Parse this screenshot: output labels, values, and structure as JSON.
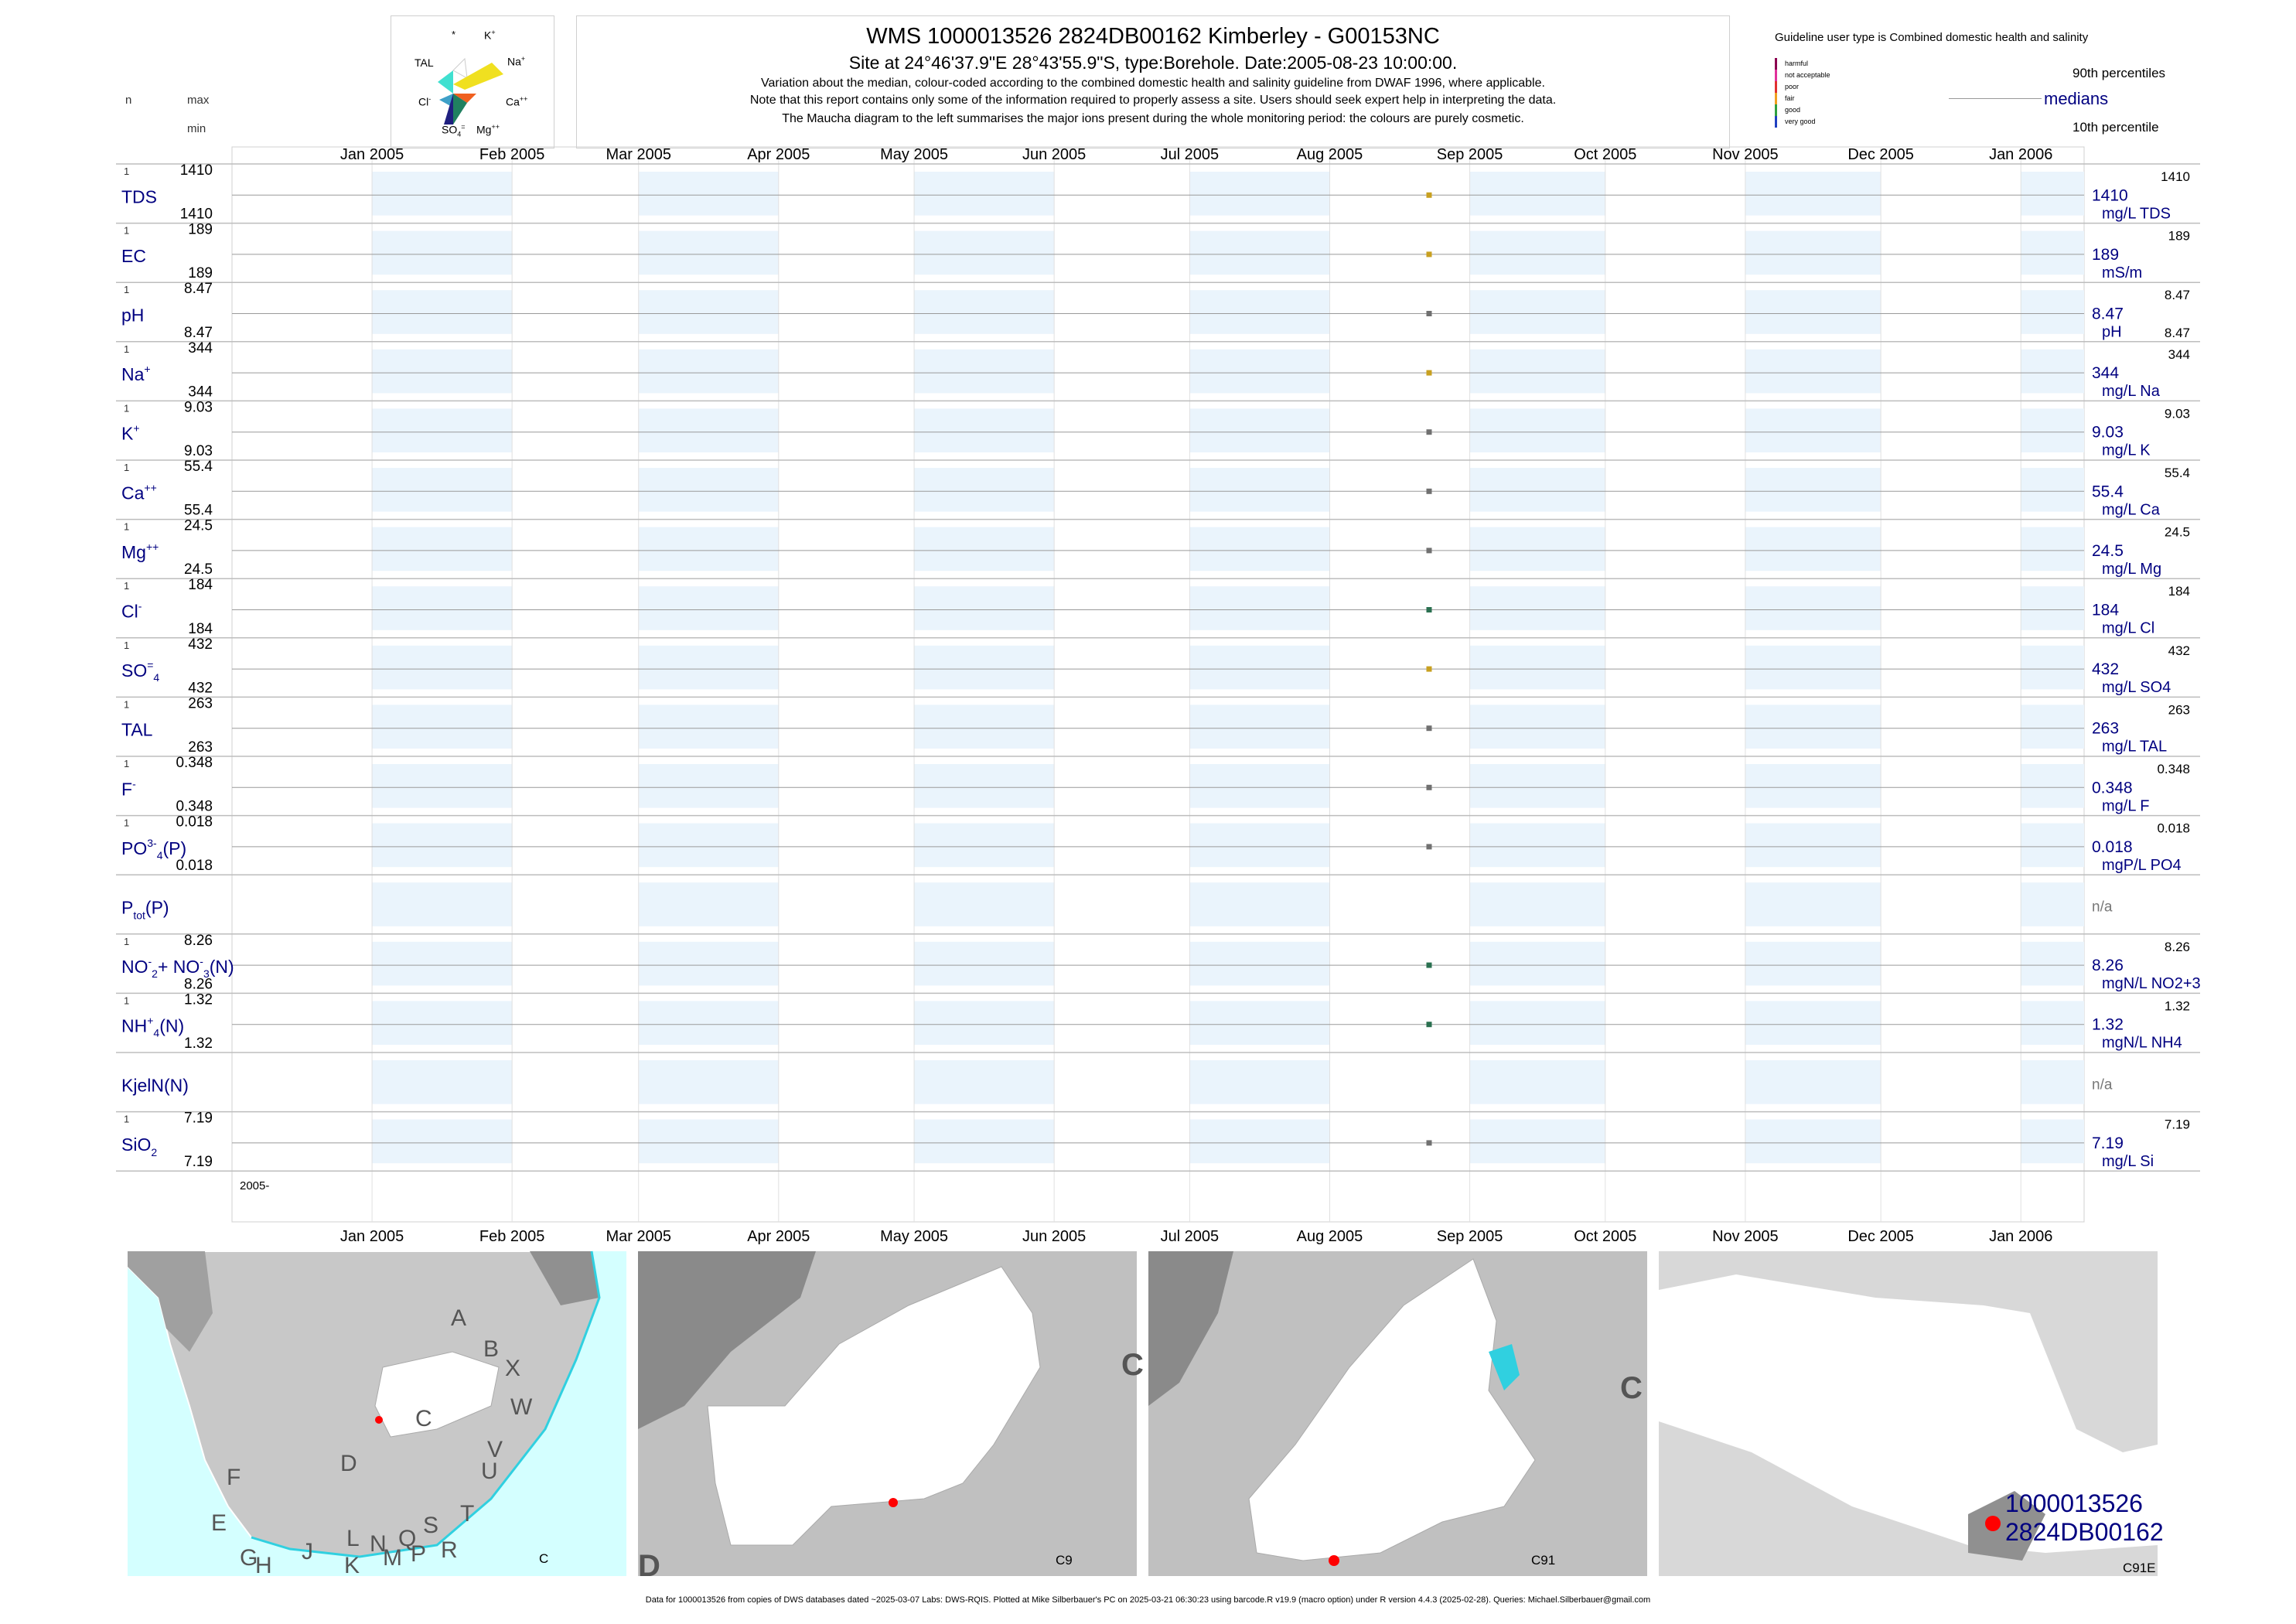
{
  "header": {
    "title": "WMS 1000013526 2824DB00162 Kimberley - G00153NC",
    "subtitle": "Site at 24°46'37.9\"E 28°43'55.9\"S, type:Borehole. Date:2005-08-23 10:00:00.",
    "note1": "Variation about the median,  colour-coded according to the combined domestic health and salinity guideline from DWAF 1996, where applicable.",
    "note2": "Note that this report contains only some of the information required to properly assess a site. Users should seek expert help in interpreting the data.",
    "note3": "The Maucha diagram to the left summarises the major ions present during the whole monitoring period: the colours are purely cosmetic."
  },
  "left_header": {
    "n": "n",
    "max": "max",
    "min": "min"
  },
  "maucha": {
    "labels": {
      "star": "*",
      "k": "K",
      "k_sup": "+",
      "tal": "TAL",
      "na": "Na",
      "na_sup": "+",
      "cl": "Cl",
      "cl_sup": "-",
      "ca": "Ca",
      "ca_sup": "++",
      "so4": "SO",
      "so4_sub": "4",
      "so4_sup": "=",
      "mg": "Mg",
      "mg_sup": "++"
    },
    "colors": {
      "na": "#f0e020",
      "k": "#ffffff",
      "tal": "#40e0d0",
      "cl": "#3ea0c8",
      "so4": "#202080",
      "mg": "#208060",
      "ca": "#f06020"
    }
  },
  "legend": {
    "title": "Guideline user type is Combined domestic health and salinity",
    "classes": [
      {
        "label": "harmful",
        "color": "#8b0050"
      },
      {
        "label": "not acceptable",
        "color": "#e0309a"
      },
      {
        "label": "poor",
        "color": "#e03030"
      },
      {
        "label": "fair",
        "color": "#f0a020"
      },
      {
        "label": "good",
        "color": "#30a040"
      },
      {
        "label": "very good",
        "color": "#2040c0"
      }
    ],
    "p90": "90th percentiles",
    "medians": "medians",
    "p10": "10th percentile"
  },
  "chart_data": {
    "type": "scatter",
    "x_range": [
      "2004-12-01",
      "2006-01-15"
    ],
    "months": [
      "Jan 2005",
      "Feb 2005",
      "Mar 2005",
      "Apr 2005",
      "May 2005",
      "Jun 2005",
      "Jul 2005",
      "Aug 2005",
      "Sep 2005",
      "Oct 2005",
      "Nov 2005",
      "Dec 2005",
      "Jan 2006"
    ],
    "sample_date": "2005-08-23",
    "year_label": "2005-",
    "variables": [
      {
        "name": "TDS",
        "sup": "",
        "sub": "",
        "n": "1",
        "max": "1410",
        "min": "1410",
        "value": "1410",
        "unit": "mg/L TDS",
        "rmax": "1410",
        "rmin": "",
        "color": "#c8a020"
      },
      {
        "name": "EC",
        "sup": "",
        "sub": "",
        "n": "1",
        "max": "189",
        "min": "189",
        "value": "189",
        "unit": "mS/m",
        "rmax": "189",
        "rmin": "",
        "color": "#c8a020"
      },
      {
        "name": "pH",
        "sup": "",
        "sub": "",
        "n": "1",
        "max": "8.47",
        "min": "8.47",
        "value": "8.47",
        "unit": "pH",
        "rmax": "8.47",
        "rmin": "8.47",
        "color": "#707070"
      },
      {
        "name": "Na",
        "sup": "+",
        "sub": "",
        "n": "1",
        "max": "344",
        "min": "344",
        "value": "344",
        "unit": "mg/L Na",
        "rmax": "344",
        "rmin": "",
        "color": "#c8a020"
      },
      {
        "name": "K",
        "sup": "+",
        "sub": "",
        "n": "1",
        "max": "9.03",
        "min": "9.03",
        "value": "9.03",
        "unit": "mg/L K",
        "rmax": "9.03",
        "rmin": "",
        "color": "#707070"
      },
      {
        "name": "Ca",
        "sup": "++",
        "sub": "",
        "n": "1",
        "max": "55.4",
        "min": "55.4",
        "value": "55.4",
        "unit": "mg/L Ca",
        "rmax": "55.4",
        "rmin": "",
        "color": "#707070"
      },
      {
        "name": "Mg",
        "sup": "++",
        "sub": "",
        "n": "1",
        "max": "24.5",
        "min": "24.5",
        "value": "24.5",
        "unit": "mg/L Mg",
        "rmax": "24.5",
        "rmin": "",
        "color": "#707070"
      },
      {
        "name": "Cl",
        "sup": "-",
        "sub": "",
        "n": "1",
        "max": "184",
        "min": "184",
        "value": "184",
        "unit": "mg/L Cl",
        "rmax": "184",
        "rmin": "",
        "color": "#2a7050"
      },
      {
        "name": "SO",
        "sup": "=",
        "sub": "4",
        "n": "1",
        "max": "432",
        "min": "432",
        "value": "432",
        "unit": "mg/L SO4",
        "rmax": "432",
        "rmin": "",
        "color": "#c8a020"
      },
      {
        "name": "TAL",
        "sup": "",
        "sub": "",
        "n": "1",
        "max": "263",
        "min": "263",
        "value": "263",
        "unit": "mg/L TAL",
        "rmax": "263",
        "rmin": "",
        "color": "#707070"
      },
      {
        "name": "F",
        "sup": "-",
        "sub": "",
        "n": "1",
        "max": "0.348",
        "min": "0.348",
        "value": "0.348",
        "unit": "mg/L F",
        "rmax": "0.348",
        "rmin": "",
        "color": "#707070"
      },
      {
        "name": "PO",
        "sup": "3-",
        "sub": "4",
        "suffix": "(P)",
        "n": "1",
        "max": "0.018",
        "min": "0.018",
        "value": "0.018",
        "unit": "mgP/L PO4",
        "rmax": "0.018",
        "rmin": "",
        "color": "#707070"
      },
      {
        "name": "P",
        "sup": "",
        "sub": "tot",
        "suffix": "(P)",
        "n": "",
        "max": "",
        "min": "",
        "value": "n/a",
        "unit": "",
        "rmax": "",
        "rmin": "",
        "color": ""
      },
      {
        "name": "NO",
        "sup": "-",
        "sub": "2",
        "suffix": "+ NO",
        "suffix_sup": "-",
        "suffix_sub": "3",
        "suffix2": "(N)",
        "n": "1",
        "max": "8.26",
        "min": "8.26",
        "value": "8.26",
        "unit": "mgN/L NO2+3",
        "rmax": "8.26",
        "rmin": "",
        "color": "#2a7050"
      },
      {
        "name": "NH",
        "sup": "+",
        "sub": "4",
        "suffix": "(N)",
        "n": "1",
        "max": "1.32",
        "min": "1.32",
        "value": "1.32",
        "unit": "mgN/L NH4",
        "rmax": "1.32",
        "rmin": "",
        "color": "#2a7050"
      },
      {
        "name": "KjelN(N)",
        "sup": "",
        "sub": "",
        "n": "",
        "max": "",
        "min": "",
        "value": "n/a",
        "unit": "",
        "rmax": "",
        "rmin": "",
        "color": ""
      },
      {
        "name": "SiO",
        "sup": "",
        "sub": "2",
        "n": "1",
        "max": "7.19",
        "min": "7.19",
        "value": "7.19",
        "unit": "mg/L Si",
        "rmax": "7.19",
        "rmin": "",
        "color": "#707070"
      }
    ]
  },
  "maps": {
    "map1": {
      "letters": [
        "A",
        "B",
        "X",
        "W",
        "C",
        "D",
        "V",
        "U",
        "F",
        "T",
        "E",
        "S",
        "L",
        "N",
        "Q",
        "R",
        "G",
        "H",
        "J",
        "K",
        "M",
        "P"
      ],
      "label": "C"
    },
    "map2": {
      "label": "C9",
      "edge1": "C",
      "edge2": "D"
    },
    "map3": {
      "label": "C91",
      "edge1": "C"
    },
    "map4": {
      "label": "C91E",
      "site1": "1000013526",
      "site2": "2824DB00162"
    }
  },
  "footer": "Data for 1000013526 from copies of DWS databases dated ~2025-03-07 Labs: DWS-RQIS. Plotted at Mike Silberbauer's PC on 2025-03-21 06:30:23 using barcode.R v19.9 (macro option) under R version 4.4.3 (2025-02-28). Queries: Michael.Silberbauer@gmail.com"
}
